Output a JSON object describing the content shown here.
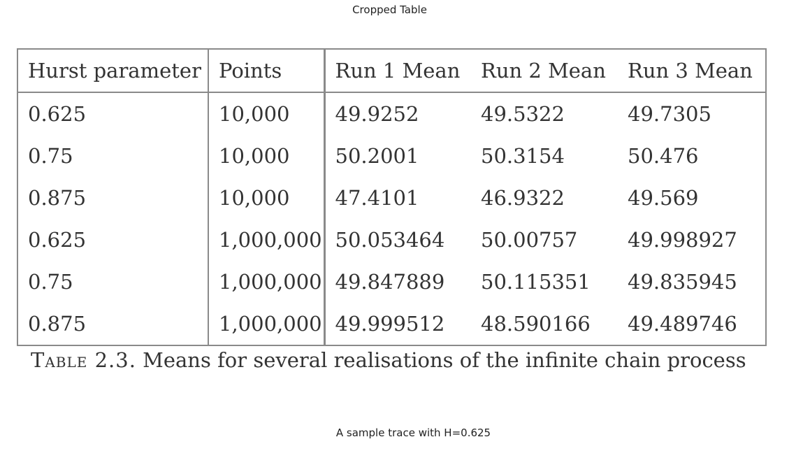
{
  "figure_title": "Cropped Table",
  "table": {
    "headers": [
      "Hurst parameter",
      "Points",
      "Run 1 Mean",
      "Run 2 Mean",
      "Run 3 Mean"
    ],
    "rows": [
      [
        "0.625",
        "10,000",
        "49.9252",
        "49.5322",
        "49.7305"
      ],
      [
        "0.75",
        "10,000",
        "50.2001",
        "50.3154",
        "50.476"
      ],
      [
        "0.875",
        "10,000",
        "47.4101",
        "46.9322",
        "49.569"
      ],
      [
        "0.625",
        "1,000,000",
        "50.053464",
        "50.00757",
        "49.998927"
      ],
      [
        "0.75",
        "1,000,000",
        "49.847889",
        "50.115351",
        "49.835945"
      ],
      [
        "0.875",
        "1,000,000",
        "49.999512",
        "48.590166",
        "49.489746"
      ]
    ]
  },
  "caption": {
    "label": "Table 2.3.",
    "text": "Means for several realisations of the infinite chain process"
  },
  "next_figure_title": "A sample trace with H=0.625"
}
